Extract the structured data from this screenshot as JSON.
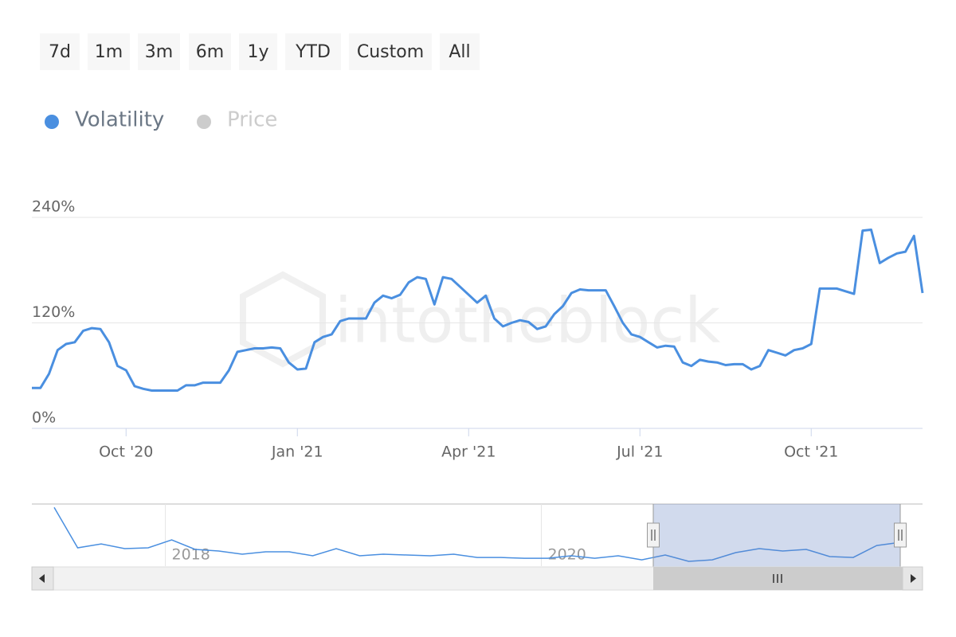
{
  "range_buttons": [
    "7d",
    "1m",
    "3m",
    "6m",
    "1y",
    "YTD",
    "Custom",
    "All"
  ],
  "chart_data": {
    "type": "line",
    "watermark": "intotheblock",
    "categories": [
      null,
      null,
      null,
      null,
      null,
      null,
      null,
      null,
      null,
      null,
      null,
      "Oct '20",
      null,
      null,
      null,
      null,
      null,
      null,
      null,
      null,
      null,
      null,
      null,
      null,
      null,
      null,
      null,
      null,
      null,
      null,
      null,
      "Jan '21",
      null,
      null,
      null,
      null,
      null,
      null,
      null,
      null,
      null,
      null,
      null,
      null,
      null,
      null,
      null,
      null,
      null,
      null,
      null,
      "Apr '21",
      null,
      null,
      null,
      null,
      null,
      null,
      null,
      null,
      null,
      null,
      null,
      null,
      null,
      null,
      null,
      null,
      null,
      null,
      null,
      "Jul '21",
      null,
      null,
      null,
      null,
      null,
      null,
      null,
      null,
      null,
      null,
      null,
      null,
      null,
      null,
      null,
      null,
      null,
      null,
      null,
      "Oct '21",
      null,
      null,
      null,
      null,
      null,
      null,
      null,
      null,
      null,
      null,
      null,
      null,
      null
    ],
    "series": [
      {
        "name": "Volatility",
        "color": "#4a8fe0",
        "visible": true,
        "values": [
          46,
          46,
          62,
          89,
          96,
          98,
          111,
          114,
          113,
          98,
          71,
          66,
          48,
          45,
          43,
          43,
          43,
          43,
          49,
          49,
          52,
          52,
          52,
          66,
          87,
          89,
          91,
          91,
          92,
          91,
          75,
          67,
          68,
          98,
          104,
          107,
          122,
          125,
          125,
          125,
          143,
          151,
          148,
          152,
          166,
          172,
          170,
          141,
          172,
          170,
          161,
          152,
          143,
          151,
          125,
          116,
          120,
          123,
          121,
          113,
          116,
          130,
          139,
          154,
          158,
          157,
          157,
          157,
          139,
          120,
          107,
          104,
          98,
          92,
          94,
          93,
          75,
          71,
          78,
          76,
          75,
          72,
          73,
          73,
          67,
          71,
          89,
          86,
          83,
          89,
          91,
          96,
          159,
          159,
          159,
          156,
          153,
          225,
          226,
          188,
          194,
          199,
          201,
          219,
          154
        ]
      },
      {
        "name": "Price",
        "color": "#cccccc",
        "visible": false
      }
    ],
    "ylim": [
      0,
      240
    ],
    "yticks": [
      {
        "value": 0,
        "label": "0%"
      },
      {
        "value": 120,
        "label": "120%"
      },
      {
        "value": 240,
        "label": "240%"
      }
    ],
    "grid": true,
    "navigator": {
      "categories": [
        null,
        null,
        null,
        null,
        null,
        "2018",
        null,
        null,
        null,
        null,
        null,
        null,
        null,
        null,
        null,
        null,
        null,
        null,
        null,
        null,
        null,
        "2020",
        null,
        null,
        null,
        null,
        null,
        null,
        null,
        null,
        null,
        null,
        null,
        null,
        null,
        null,
        null
      ],
      "values": [
        587,
        183,
        222,
        175,
        183,
        262,
        167,
        151,
        119,
        143,
        143,
        103,
        175,
        103,
        119,
        111,
        103,
        119,
        87,
        87,
        79,
        79,
        103,
        79,
        103,
        63,
        111,
        48,
        63,
        135,
        175,
        151,
        167,
        95,
        87,
        206,
        238
      ],
      "ylim": [
        0,
        620
      ]
    }
  }
}
